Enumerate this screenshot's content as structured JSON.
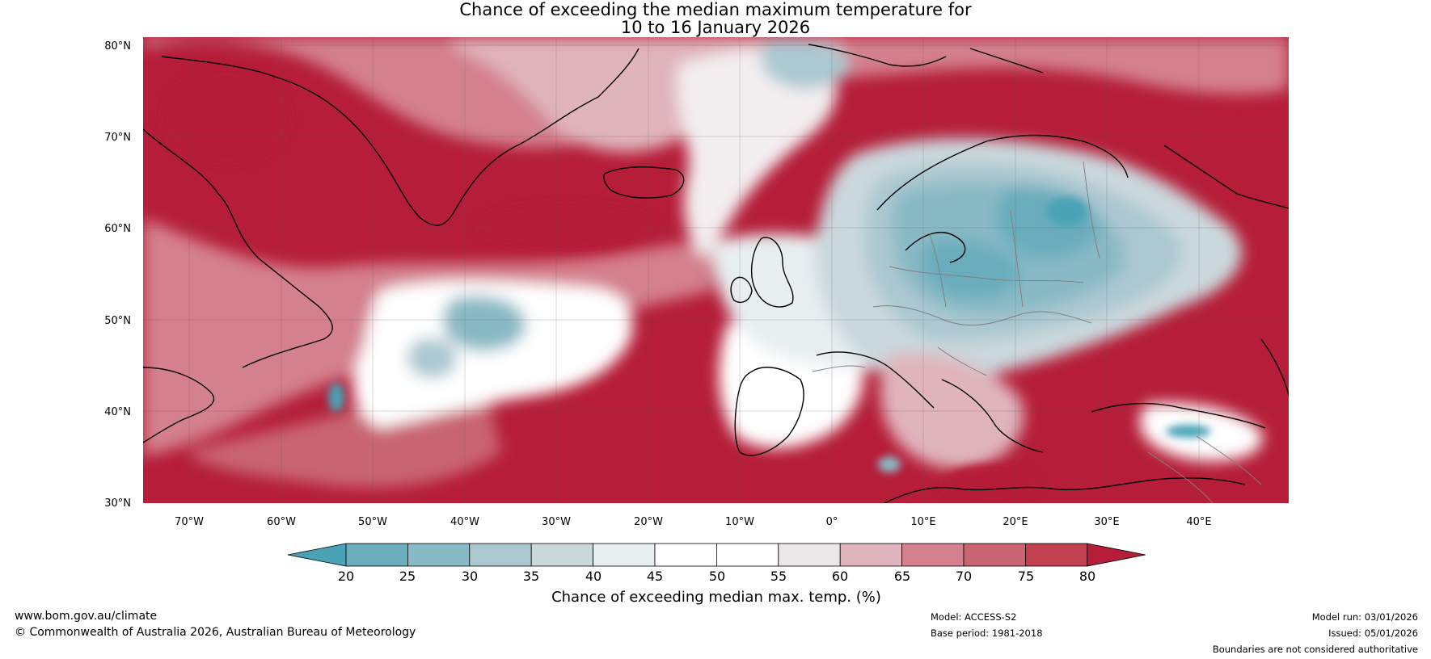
{
  "title_line1": "Chance of exceeding the median maximum temperature for",
  "title_line2": "10 to 16 January 2026",
  "lat_labels": [
    "80°N",
    "70°N",
    "60°N",
    "50°N",
    "40°N",
    "30°N"
  ],
  "lon_labels": [
    "70°W",
    "60°W",
    "50°W",
    "40°W",
    "30°W",
    "20°W",
    "10°W",
    "0°",
    "10°E",
    "20°E",
    "30°E",
    "40°E"
  ],
  "colorbar": {
    "ticks": [
      "20",
      "25",
      "30",
      "35",
      "40",
      "45",
      "50",
      "55",
      "60",
      "65",
      "70",
      "75",
      "80"
    ],
    "colors": [
      "#4aa3b5",
      "#6aadbd",
      "#89b9c5",
      "#abc8d0",
      "#cad8dc",
      "#e8eff1",
      "#ffffff",
      "#ffffff",
      "#ebe6e8",
      "#e0b4bc",
      "#d4808e",
      "#c96572",
      "#c0404f",
      "#b51d38"
    ],
    "label": "Chance of exceeding median max. temp. (%)"
  },
  "footer": {
    "website": "www.bom.gov.au/climate",
    "copyright": "© Commonwealth of Australia 2026, Australian Bureau of Meteorology",
    "model": "Model: ACCESS-S2",
    "base_period": "Base period: 1981-2018",
    "model_run": "Model run: 03/01/2026",
    "issued": "Issued: 05/01/2026",
    "disclaimer": "Boundaries are not considered authoritative"
  }
}
